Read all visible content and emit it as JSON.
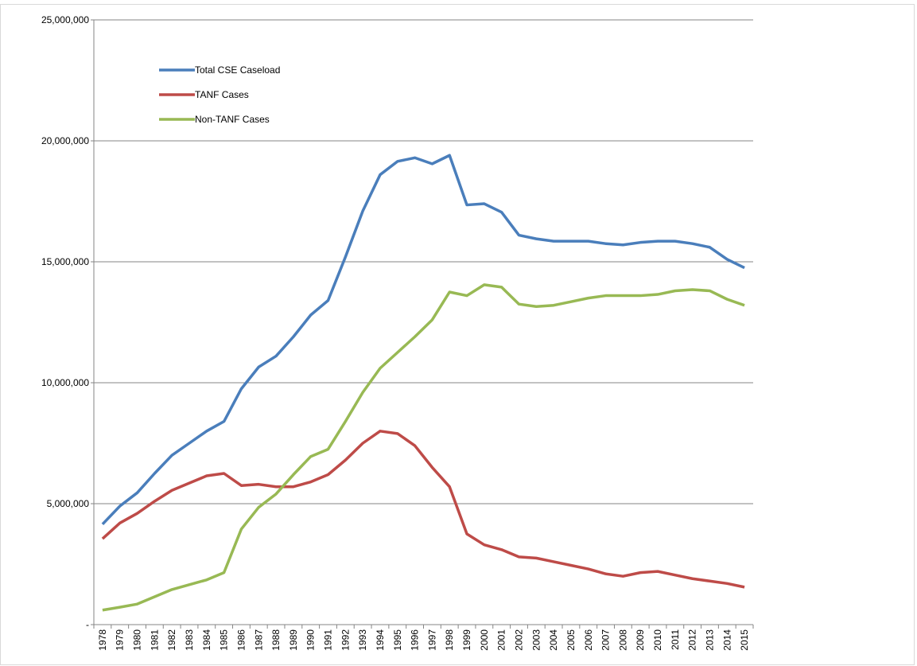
{
  "chart_data": {
    "type": "line",
    "categories": [
      "1978",
      "1979",
      "1980",
      "1981",
      "1982",
      "1983",
      "1984",
      "1985",
      "1986",
      "1987",
      "1988",
      "1989",
      "1990",
      "1991",
      "1992",
      "1993",
      "1994",
      "1995",
      "1996",
      "1997",
      "1998",
      "1999",
      "2000",
      "2001",
      "2002",
      "2003",
      "2004",
      "2005",
      "2006",
      "2007",
      "2008",
      "2009",
      "2010",
      "2011",
      "2012",
      "2013",
      "2014",
      "2015"
    ],
    "series": [
      {
        "name": "Total CSE Caseload",
        "color": "#4a7ebb",
        "values": [
          4150000,
          4900000,
          5450000,
          6250000,
          7000000,
          7500000,
          8000000,
          8400000,
          9750000,
          10650000,
          11100000,
          11900000,
          12800000,
          13400000,
          15200000,
          17100000,
          18600000,
          19150000,
          19300000,
          19050000,
          19400000,
          17350000,
          17400000,
          17050000,
          16100000,
          15950000,
          15850000,
          15850000,
          15850000,
          15750000,
          15700000,
          15800000,
          15850000,
          15850000,
          15750000,
          15600000,
          15100000,
          14750000
        ]
      },
      {
        "name": "TANF Cases",
        "color": "#be4b48",
        "values": [
          3550000,
          4200000,
          4600000,
          5100000,
          5550000,
          5850000,
          6150000,
          6250000,
          5750000,
          5800000,
          5700000,
          5700000,
          5900000,
          6200000,
          6800000,
          7500000,
          8000000,
          7900000,
          7400000,
          6500000,
          5700000,
          3750000,
          3300000,
          3100000,
          2800000,
          2750000,
          2600000,
          2450000,
          2300000,
          2100000,
          2000000,
          2150000,
          2200000,
          2050000,
          1900000,
          1800000,
          1700000,
          1550000
        ]
      },
      {
        "name": "Non-TANF Cases",
        "color": "#98b954",
        "values": [
          600000,
          720000,
          850000,
          1150000,
          1450000,
          1650000,
          1850000,
          2150000,
          3950000,
          4850000,
          5400000,
          6200000,
          6950000,
          7250000,
          8400000,
          9600000,
          10600000,
          11250000,
          11900000,
          12600000,
          13750000,
          13600000,
          14050000,
          13950000,
          13250000,
          13150000,
          13200000,
          13350000,
          13500000,
          13600000,
          13600000,
          13600000,
          13650000,
          13800000,
          13850000,
          13800000,
          13450000,
          13200000
        ]
      }
    ],
    "ylim": [
      0,
      25000000
    ],
    "yticks": [
      {
        "value": 0,
        "label": "-"
      },
      {
        "value": 5000000,
        "label": "5,000,000"
      },
      {
        "value": 10000000,
        "label": "10,000,000"
      },
      {
        "value": 15000000,
        "label": "15,000,000"
      },
      {
        "value": 20000000,
        "label": "20,000,000"
      },
      {
        "value": 25000000,
        "label": "25,000,000"
      }
    ],
    "grid": true,
    "legend": "upper-left"
  }
}
